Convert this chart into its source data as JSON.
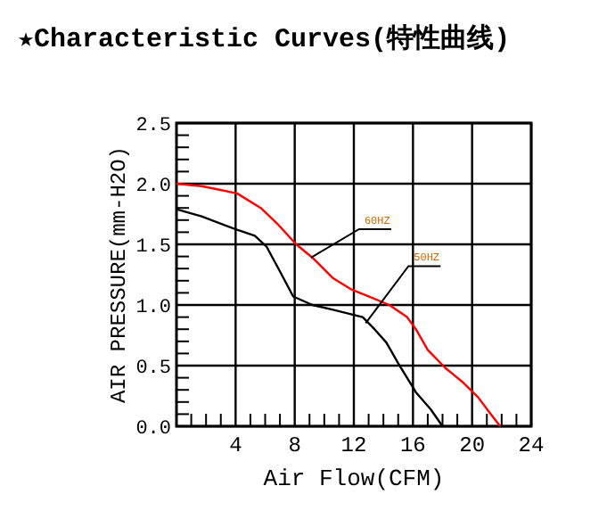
{
  "chart_data": {
    "type": "line",
    "title": "★Characteristic Curves(特性曲线)",
    "xlabel": "Air Flow(CFM)",
    "ylabel": "AIR PRESSURE(mm-H2O)",
    "xlim": [
      0,
      24
    ],
    "ylim": [
      0,
      2.5
    ],
    "xticks": [
      {
        "value": 1,
        "label": null
      },
      {
        "value": 2,
        "label": null
      },
      {
        "value": 3,
        "label": null
      },
      4,
      {
        "value": 5,
        "label": null
      },
      {
        "value": 6,
        "label": null
      },
      {
        "value": 7,
        "label": null
      },
      8,
      {
        "value": 9,
        "label": null
      },
      {
        "value": 10,
        "label": null
      },
      {
        "value": 11,
        "label": null
      },
      12,
      {
        "value": 13,
        "label": null
      },
      {
        "value": 14,
        "label": null
      },
      {
        "value": 15,
        "label": null
      },
      16,
      {
        "value": 17,
        "label": null
      },
      {
        "value": 18,
        "label": null
      },
      {
        "value": 19,
        "label": null
      },
      20,
      {
        "value": 21,
        "label": null
      },
      {
        "value": 22,
        "label": null
      },
      {
        "value": 23,
        "label": null
      },
      24
    ],
    "yticks": [
      {
        "value": 0,
        "label": "0.0"
      },
      {
        "value": 0.1,
        "label": null
      },
      {
        "value": 0.2,
        "label": null
      },
      {
        "value": 0.3,
        "label": null
      },
      {
        "value": 0.4,
        "label": null
      },
      {
        "value": 0.5,
        "label": "0.5"
      },
      {
        "value": 0.6,
        "label": null
      },
      {
        "value": 0.7,
        "label": null
      },
      {
        "value": 0.8,
        "label": null
      },
      {
        "value": 0.9,
        "label": null
      },
      {
        "value": 1,
        "label": "1.0"
      },
      {
        "value": 1.1,
        "label": null
      },
      {
        "value": 1.2,
        "label": null
      },
      {
        "value": 1.3,
        "label": null
      },
      {
        "value": 1.4,
        "label": null
      },
      {
        "value": 1.5,
        "label": "1.5"
      },
      {
        "value": 1.6,
        "label": null
      },
      {
        "value": 1.7,
        "label": null
      },
      {
        "value": 1.8,
        "label": null
      },
      {
        "value": 1.9,
        "label": null
      },
      {
        "value": 2,
        "label": "2.0"
      },
      {
        "value": 2.1,
        "label": null
      },
      {
        "value": 2.2,
        "label": null
      },
      {
        "value": 2.3,
        "label": null
      },
      {
        "value": 2.4,
        "label": null
      },
      {
        "value": 2.5,
        "label": "2.5"
      }
    ],
    "grid": true,
    "marker": "none",
    "line_style": "solid",
    "series": [
      {
        "color": "#ff0000",
        "x": [
          0,
          1.7,
          4.1,
          5.7,
          6.9,
          8.1,
          9.2,
          10.6,
          11.8,
          13,
          14.4,
          15.6,
          16.2,
          17,
          18.2,
          19.4,
          20.4,
          21.2,
          21.9
        ],
        "values": [
          2.0,
          1.98,
          1.92,
          1.8,
          1.66,
          1.5,
          1.39,
          1.22,
          1.13,
          1.07,
          1.0,
          0.9,
          0.8,
          0.63,
          0.48,
          0.36,
          0.24,
          0.11,
          0
        ]
      },
      {
        "color": "#000000",
        "x": [
          0,
          1.7,
          4.1,
          5.3,
          6.1,
          6.9,
          7.9,
          9.2,
          10.6,
          12.6,
          13.4,
          14.2,
          15,
          16.2,
          17.2,
          18
        ],
        "values": [
          1.79,
          1.73,
          1.62,
          1.57,
          1.48,
          1.3,
          1.07,
          1.0,
          0.96,
          0.9,
          0.8,
          0.69,
          0.52,
          0.28,
          0.14,
          0
        ]
      }
    ],
    "annotations": [
      {
        "text": "60HZ",
        "x": 9.1,
        "y": 1.39
      },
      {
        "text": "50HZ",
        "x": 12.8,
        "y": 0.85
      }
    ]
  }
}
